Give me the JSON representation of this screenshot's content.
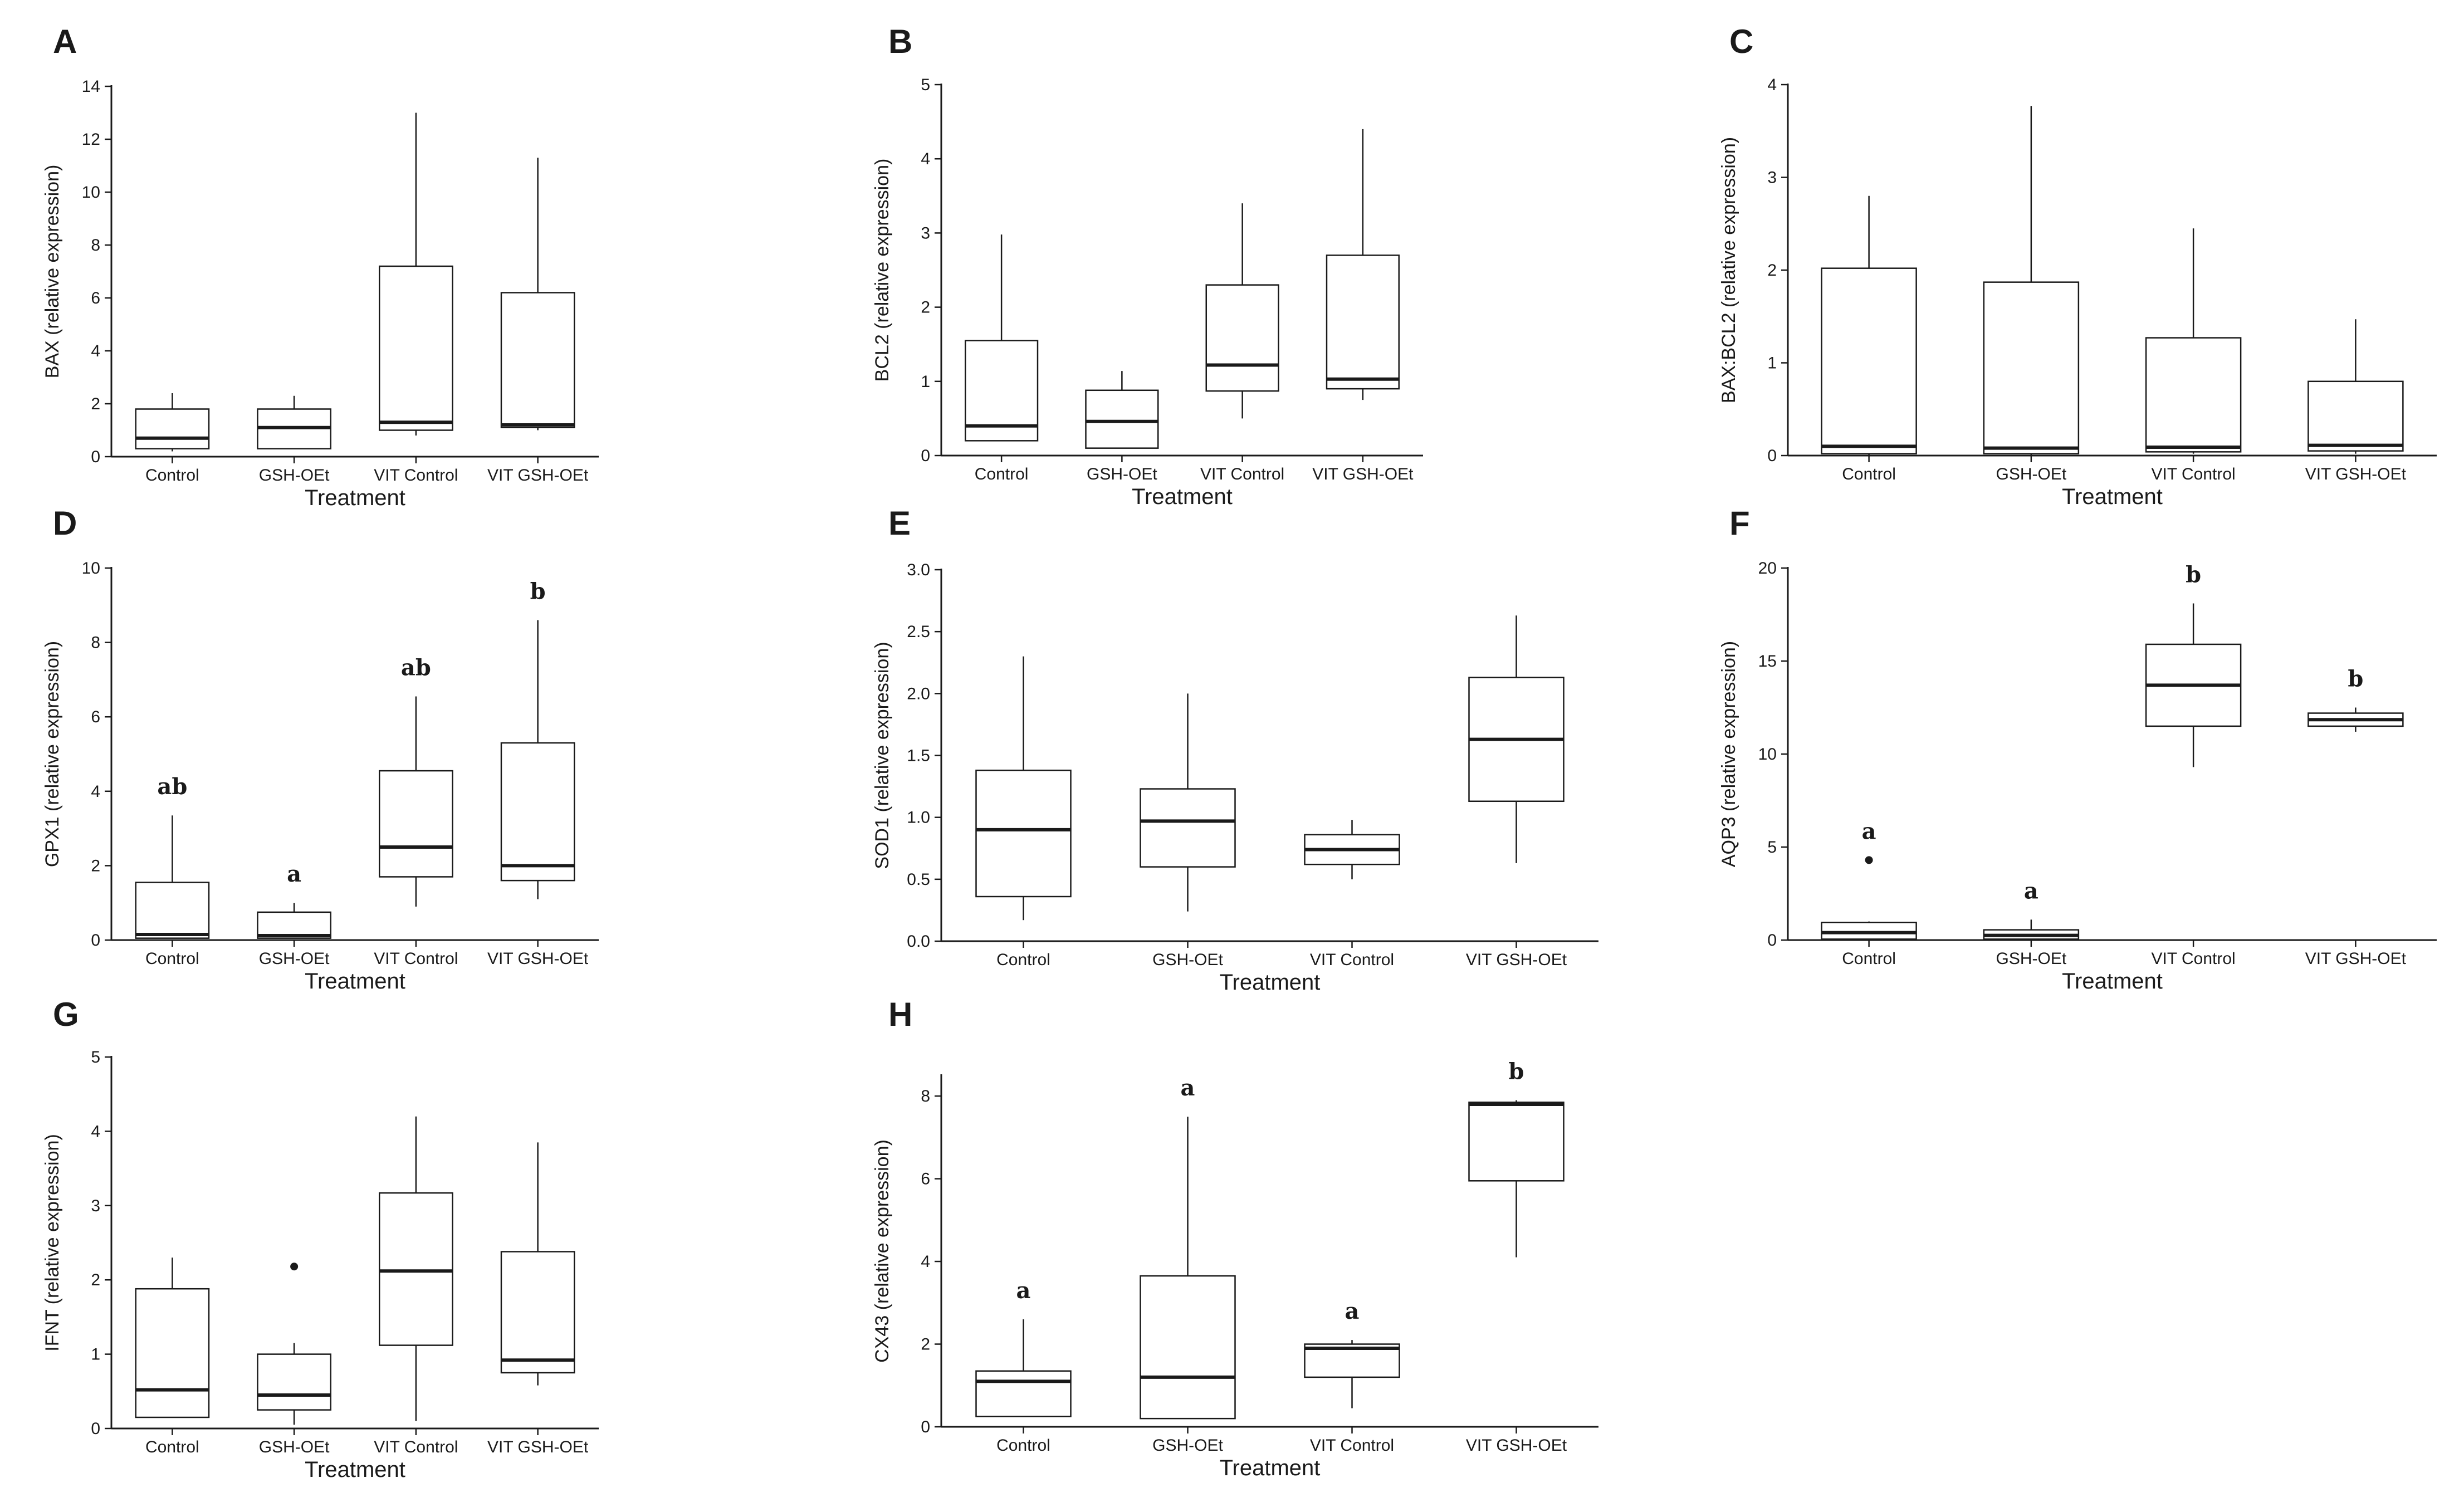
{
  "chart_data": [
    {
      "id": "A",
      "type": "box",
      "ylabel": "BAX (relative expression)",
      "xlabel": "Treatment",
      "ylim": [
        0,
        14
      ],
      "ticks": [
        0,
        2,
        4,
        6,
        8,
        10,
        12,
        14
      ],
      "groups": [
        {
          "name": "Control",
          "min": 0.2,
          "q1": 0.3,
          "median": 0.7,
          "q3": 1.8,
          "max": 2.4,
          "outliers": [],
          "sig": ""
        },
        {
          "name": "GSH-OEt",
          "min": 0.3,
          "q1": 0.3,
          "median": 1.1,
          "q3": 1.8,
          "max": 2.3,
          "outliers": [],
          "sig": ""
        },
        {
          "name": "VIT Control",
          "min": 0.8,
          "q1": 1.0,
          "median": 1.3,
          "q3": 7.2,
          "max": 13.0,
          "outliers": [],
          "sig": ""
        },
        {
          "name": "VIT GSH-OEt",
          "min": 1.0,
          "q1": 1.1,
          "median": 1.2,
          "q3": 6.2,
          "max": 11.3,
          "outliers": [],
          "sig": ""
        }
      ]
    },
    {
      "id": "B",
      "type": "box",
      "ylabel": "BCL2 (relative expression)",
      "xlabel": "Treatment",
      "ylim": [
        0,
        5
      ],
      "ticks": [
        0,
        1,
        2,
        3,
        4,
        5
      ],
      "groups": [
        {
          "name": "Control",
          "min": 0.2,
          "q1": 0.2,
          "median": 0.4,
          "q3": 1.55,
          "max": 2.98,
          "outliers": [],
          "sig": ""
        },
        {
          "name": "GSH-OEt",
          "min": 0.1,
          "q1": 0.1,
          "median": 0.46,
          "q3": 0.88,
          "max": 1.14,
          "outliers": [],
          "sig": ""
        },
        {
          "name": "VIT Control",
          "min": 0.5,
          "q1": 0.87,
          "median": 1.22,
          "q3": 2.3,
          "max": 3.4,
          "outliers": [],
          "sig": ""
        },
        {
          "name": "VIT GSH-OEt",
          "min": 0.75,
          "q1": 0.9,
          "median": 1.03,
          "q3": 2.7,
          "max": 4.4,
          "outliers": [],
          "sig": ""
        }
      ]
    },
    {
      "id": "C",
      "type": "box",
      "ylabel": "BAX:BCL2 (relative expression)",
      "xlabel": "Treatment",
      "ylim": [
        0,
        4
      ],
      "ticks": [
        0,
        1,
        2,
        3,
        4
      ],
      "groups": [
        {
          "name": "Control",
          "min": 0.0,
          "q1": 0.02,
          "median": 0.1,
          "q3": 2.02,
          "max": 2.8,
          "outliers": [],
          "sig": ""
        },
        {
          "name": "GSH-OEt",
          "min": 0.0,
          "q1": 0.02,
          "median": 0.08,
          "q3": 1.87,
          "max": 3.77,
          "outliers": [],
          "sig": ""
        },
        {
          "name": "VIT Control",
          "min": 0.02,
          "q1": 0.04,
          "median": 0.09,
          "q3": 1.27,
          "max": 2.45,
          "outliers": [],
          "sig": ""
        },
        {
          "name": "VIT GSH-OEt",
          "min": 0.02,
          "q1": 0.05,
          "median": 0.11,
          "q3": 0.8,
          "max": 1.47,
          "outliers": [],
          "sig": ""
        }
      ]
    },
    {
      "id": "D",
      "type": "box",
      "ylabel": "GPX1 (relative expression)",
      "xlabel": "Treatment",
      "ylim": [
        0,
        10
      ],
      "ticks": [
        0,
        2,
        4,
        6,
        8,
        10
      ],
      "groups": [
        {
          "name": "Control",
          "min": 0.05,
          "q1": 0.05,
          "median": 0.15,
          "q3": 1.55,
          "max": 3.35,
          "outliers": [],
          "sig": "ab"
        },
        {
          "name": "GSH-OEt",
          "min": 0.05,
          "q1": 0.05,
          "median": 0.12,
          "q3": 0.75,
          "max": 1.0,
          "outliers": [],
          "sig": "a"
        },
        {
          "name": "VIT Control",
          "min": 0.9,
          "q1": 1.7,
          "median": 2.5,
          "q3": 4.55,
          "max": 6.55,
          "outliers": [],
          "sig": "ab"
        },
        {
          "name": "VIT GSH-OEt",
          "min": 1.1,
          "q1": 1.6,
          "median": 2.0,
          "q3": 5.3,
          "max": 8.6,
          "outliers": [],
          "sig": "b"
        }
      ]
    },
    {
      "id": "E",
      "type": "box",
      "ylabel": "SOD1 (relative expression)",
      "xlabel": "Treatment",
      "ylim": [
        0,
        3.0
      ],
      "ticks": [
        0.0,
        0.5,
        1.0,
        1.5,
        2.0,
        2.5,
        3.0
      ],
      "groups": [
        {
          "name": "Control",
          "min": 0.17,
          "q1": 0.36,
          "median": 0.9,
          "q3": 1.38,
          "max": 2.3,
          "outliers": [],
          "sig": ""
        },
        {
          "name": "GSH-OEt",
          "min": 0.24,
          "q1": 0.6,
          "median": 0.97,
          "q3": 1.23,
          "max": 2.0,
          "outliers": [],
          "sig": ""
        },
        {
          "name": "VIT Control",
          "min": 0.5,
          "q1": 0.62,
          "median": 0.74,
          "q3": 0.86,
          "max": 0.98,
          "outliers": [],
          "sig": ""
        },
        {
          "name": "VIT GSH-OEt",
          "min": 0.63,
          "q1": 1.13,
          "median": 1.63,
          "q3": 2.13,
          "max": 2.63,
          "outliers": [],
          "sig": ""
        }
      ]
    },
    {
      "id": "F",
      "type": "box",
      "ylabel": "AQP3 (relative expression)",
      "xlabel": "Treatment",
      "ylim": [
        0,
        20
      ],
      "ticks": [
        0,
        5,
        10,
        15,
        20
      ],
      "groups": [
        {
          "name": "Control",
          "min": 0.0,
          "q1": 0.05,
          "median": 0.4,
          "q3": 0.95,
          "max": 1.0,
          "outliers": [
            4.3
          ],
          "sig": "a"
        },
        {
          "name": "GSH-OEt",
          "min": 0.0,
          "q1": 0.05,
          "median": 0.25,
          "q3": 0.55,
          "max": 1.1,
          "outliers": [],
          "sig": "a"
        },
        {
          "name": "VIT Control",
          "min": 9.3,
          "q1": 11.5,
          "median": 13.7,
          "q3": 15.9,
          "max": 18.1,
          "outliers": [],
          "sig": "b"
        },
        {
          "name": "VIT GSH-OEt",
          "min": 11.2,
          "q1": 11.5,
          "median": 11.85,
          "q3": 12.2,
          "max": 12.5,
          "outliers": [],
          "sig": "b"
        }
      ]
    },
    {
      "id": "G",
      "type": "box",
      "ylabel": "IFNT (relative expression)",
      "xlabel": "Treatment",
      "ylim": [
        0,
        5
      ],
      "ticks": [
        0,
        1,
        2,
        3,
        4,
        5
      ],
      "groups": [
        {
          "name": "Control",
          "min": 0.15,
          "q1": 0.15,
          "median": 0.52,
          "q3": 1.88,
          "max": 2.3,
          "outliers": [],
          "sig": ""
        },
        {
          "name": "GSH-OEt",
          "min": 0.05,
          "q1": 0.25,
          "median": 0.45,
          "q3": 1.0,
          "max": 1.15,
          "outliers": [
            2.18
          ],
          "sig": ""
        },
        {
          "name": "VIT Control",
          "min": 0.1,
          "q1": 1.12,
          "median": 2.12,
          "q3": 3.17,
          "max": 4.2,
          "outliers": [],
          "sig": ""
        },
        {
          "name": "VIT GSH-OEt",
          "min": 0.58,
          "q1": 0.75,
          "median": 0.92,
          "q3": 2.38,
          "max": 3.85,
          "outliers": [],
          "sig": ""
        }
      ]
    },
    {
      "id": "H",
      "type": "box",
      "ylabel": "CX43 (relative expression)",
      "xlabel": "Treatment",
      "ylim": [
        0,
        8.5
      ],
      "ticks": [
        0,
        2,
        4,
        6,
        8
      ],
      "groups": [
        {
          "name": "Control",
          "min": 0.25,
          "q1": 0.25,
          "median": 1.1,
          "q3": 1.35,
          "max": 2.6,
          "outliers": [],
          "sig": "a"
        },
        {
          "name": "GSH-OEt",
          "min": 0.2,
          "q1": 0.2,
          "median": 1.2,
          "q3": 3.65,
          "max": 7.5,
          "outliers": [],
          "sig": "a"
        },
        {
          "name": "VIT Control",
          "min": 0.45,
          "q1": 1.2,
          "median": 1.9,
          "q3": 2.0,
          "max": 2.1,
          "outliers": [],
          "sig": "a"
        },
        {
          "name": "VIT GSH-OEt",
          "min": 4.1,
          "q1": 5.95,
          "median": 7.8,
          "q3": 7.85,
          "max": 7.9,
          "outliers": [],
          "sig": "b"
        }
      ]
    }
  ]
}
